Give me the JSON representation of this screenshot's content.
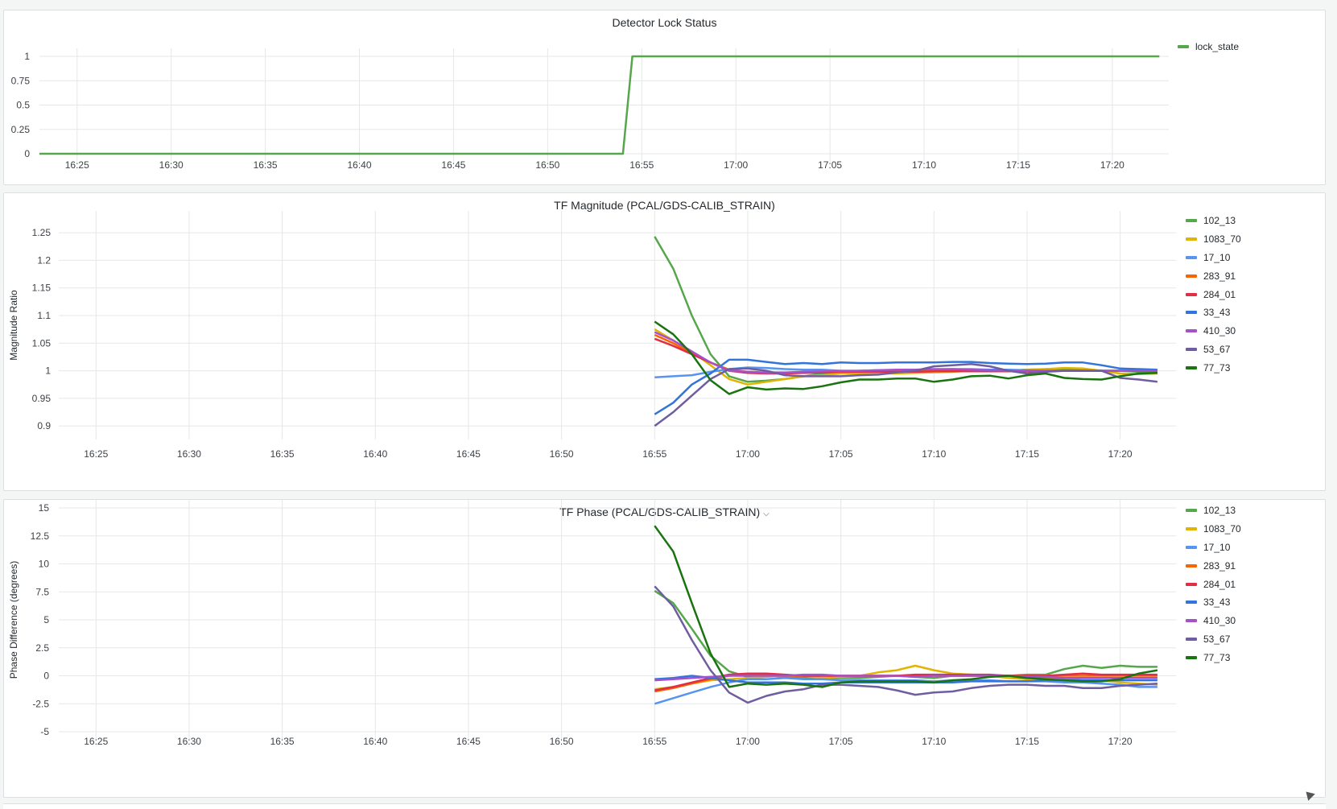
{
  "colors": {
    "102_13": "#56a64b",
    "1083_70": "#e0b400",
    "17_10": "#5794f2",
    "283_91": "#fa6400",
    "284_01": "#e02f44",
    "33_43": "#3274d9",
    "410_30": "#a352cc",
    "53_67": "#705da0",
    "77_73": "#19730e"
  },
  "panels": {
    "lock": {
      "title": "Detector Lock Status"
    },
    "mag": {
      "title": "TF Magnitude (PCAL/GDS-CALIB_STRAIN)",
      "ylabel": "Magnitude Ratio"
    },
    "phase": {
      "title": "TF Phase (PCAL/GDS-CALIB_STRAIN)",
      "ylabel": "Phase Difference (degrees)",
      "menu_icon": "chevron-down-icon"
    }
  },
  "chart_data": [
    {
      "type": "line",
      "title": "Detector Lock Status",
      "x_ticks": [
        "16:25",
        "16:30",
        "16:35",
        "16:40",
        "16:45",
        "16:50",
        "16:55",
        "17:00",
        "17:05",
        "17:10",
        "17:15",
        "17:20"
      ],
      "xlim": [
        "16:23",
        "17:23"
      ],
      "y_ticks": [
        "0",
        "0.25",
        "0.5",
        "0.75",
        "1"
      ],
      "ylim": [
        0,
        1
      ],
      "grid": true,
      "legend": "right",
      "series": [
        {
          "name": "lock_state",
          "x": [
            "16:23",
            "16:54:00",
            "16:54:30",
            "17:22:30"
          ],
          "values": [
            0,
            0,
            1,
            1
          ]
        }
      ]
    },
    {
      "type": "line",
      "title": "TF Magnitude (PCAL/GDS-CALIB_STRAIN)",
      "ylabel": "Magnitude Ratio",
      "x_ticks": [
        "16:25",
        "16:30",
        "16:35",
        "16:40",
        "16:45",
        "16:50",
        "16:55",
        "17:00",
        "17:05",
        "17:10",
        "17:15",
        "17:20"
      ],
      "xlim": [
        "16:23",
        "17:23"
      ],
      "y_ticks": [
        "0.9",
        "0.95",
        "1",
        "1.05",
        "1.1",
        "1.15",
        "1.2",
        "1.25"
      ],
      "ylim": [
        0.89,
        1.275
      ],
      "grid": true,
      "legend": "right",
      "x": [
        "16:55",
        "16:56",
        "16:57",
        "16:58",
        "16:59",
        "17:00",
        "17:01",
        "17:02",
        "17:03",
        "17:04",
        "17:05",
        "17:06",
        "17:07",
        "17:08",
        "17:09",
        "17:10",
        "17:11",
        "17:12",
        "17:13",
        "17:14",
        "17:15",
        "17:16",
        "17:17",
        "17:18",
        "17:19",
        "17:20",
        "17:21",
        "17:22"
      ],
      "series": [
        {
          "name": "102_13",
          "values": [
            1.243,
            1.185,
            1.1,
            1.03,
            0.99,
            0.98,
            0.982,
            0.985,
            0.99,
            0.995,
            0.998,
            1.0,
            1.0,
            1.0,
            1.0,
            1.0,
            1.0,
            1.0,
            1.0,
            1.0,
            1.002,
            1.003,
            1.003,
            1.002,
            1.0,
            1.0,
            0.998,
            0.997
          ]
        },
        {
          "name": "1083_70",
          "values": [
            1.075,
            1.055,
            1.035,
            1.01,
            0.985,
            0.975,
            0.98,
            0.985,
            0.99,
            0.992,
            0.995,
            0.995,
            0.995,
            0.995,
            0.996,
            0.997,
            0.998,
            1.0,
            1.0,
            1.0,
            1.002,
            1.003,
            1.005,
            1.004,
            1.0,
            0.995,
            0.994,
            0.995
          ]
        },
        {
          "name": "17_10",
          "values": [
            0.988,
            0.99,
            0.992,
            0.998,
            1.003,
            1.006,
            1.005,
            1.003,
            1.002,
            1.002,
            1.0,
            1.0,
            1.001,
            1.001,
            1.002,
            1.002,
            1.003,
            1.003,
            1.002,
            1.002,
            1.001,
            1.0,
            1.0,
            1.0,
            1.0,
            1.0,
            1.0,
            1.0
          ]
        },
        {
          "name": "283_91",
          "values": [
            1.065,
            1.05,
            1.032,
            1.015,
            1.002,
            0.998,
            0.997,
            0.997,
            0.998,
            0.998,
            0.998,
            0.999,
            0.999,
            0.999,
            0.999,
            0.999,
            1.0,
            1.0,
            1.0,
            1.0,
            1.0,
            1.0,
            1.0,
            1.0,
            1.0,
            1.0,
            1.0,
            1.0
          ]
        },
        {
          "name": "284_01",
          "values": [
            1.058,
            1.045,
            1.03,
            1.015,
            1.0,
            0.996,
            0.995,
            0.995,
            0.996,
            0.997,
            0.998,
            0.998,
            0.998,
            0.998,
            0.998,
            0.999,
            0.999,
            0.999,
            0.999,
            0.999,
            0.999,
            0.999,
            1.0,
            1.0,
            1.0,
            1.0,
            1.0,
            1.0
          ]
        },
        {
          "name": "33_43",
          "values": [
            0.921,
            0.942,
            0.975,
            0.995,
            1.02,
            1.02,
            1.016,
            1.012,
            1.014,
            1.012,
            1.015,
            1.014,
            1.014,
            1.015,
            1.015,
            1.015,
            1.016,
            1.016,
            1.014,
            1.013,
            1.012,
            1.013,
            1.015,
            1.015,
            1.01,
            1.004,
            1.003,
            1.002
          ]
        },
        {
          "name": "410_30",
          "values": [
            1.07,
            1.055,
            1.035,
            1.015,
            1.0,
            0.998,
            0.996,
            0.996,
            0.998,
            0.999,
            1.0,
            1.0,
            1.001,
            1.002,
            1.002,
            1.003,
            1.003,
            1.002,
            1.001,
            1.0,
            1.0,
            1.0,
            1.0,
            1.0,
            1.0,
            1.0,
            1.0,
            1.0
          ]
        },
        {
          "name": "53_67",
          "values": [
            0.9,
            0.925,
            0.955,
            0.985,
            1.003,
            1.004,
            1.0,
            0.992,
            0.99,
            0.99,
            0.99,
            0.992,
            0.993,
            0.997,
            1.0,
            1.008,
            1.01,
            1.012,
            1.008,
            1.0,
            0.995,
            0.998,
            1.0,
            1.0,
            1.0,
            0.987,
            0.984,
            0.98
          ]
        },
        {
          "name": "77_73",
          "values": [
            1.089,
            1.066,
            1.03,
            0.983,
            0.958,
            0.97,
            0.966,
            0.968,
            0.967,
            0.972,
            0.979,
            0.984,
            0.984,
            0.986,
            0.986,
            0.98,
            0.984,
            0.99,
            0.991,
            0.986,
            0.992,
            0.995,
            0.987,
            0.985,
            0.984,
            0.99,
            0.995,
            0.996
          ]
        }
      ]
    },
    {
      "type": "line",
      "title": "TF Phase (PCAL/GDS-CALIB_STRAIN)",
      "ylabel": "Phase Difference (degrees)",
      "x_ticks": [
        "16:25",
        "16:30",
        "16:35",
        "16:40",
        "16:45",
        "16:50",
        "16:55",
        "17:00",
        "17:05",
        "17:10",
        "17:15",
        "17:20"
      ],
      "xlim": [
        "16:23",
        "17:23"
      ],
      "y_ticks": [
        "-5",
        "-2.5",
        "0",
        "2.5",
        "5",
        "7.5",
        "10",
        "12.5",
        "15"
      ],
      "ylim": [
        -5,
        15
      ],
      "grid": true,
      "legend": "right",
      "x": [
        "16:55",
        "16:56",
        "16:57",
        "16:58",
        "16:59",
        "17:00",
        "17:01",
        "17:02",
        "17:03",
        "17:04",
        "17:05",
        "17:06",
        "17:07",
        "17:08",
        "17:09",
        "17:10",
        "17:11",
        "17:12",
        "17:13",
        "17:14",
        "17:15",
        "17:16",
        "17:17",
        "17:18",
        "17:19",
        "17:20",
        "17:21",
        "17:22"
      ],
      "series": [
        {
          "name": "102_13",
          "values": [
            7.6,
            6.5,
            4.2,
            1.8,
            0.4,
            -0.1,
            0.0,
            -0.1,
            -0.2,
            -0.2,
            -0.2,
            -0.2,
            -0.1,
            0.0,
            -0.1,
            -0.2,
            0.0,
            0.0,
            0.0,
            0.0,
            0.1,
            0.1,
            0.6,
            0.9,
            0.7,
            0.9,
            0.8,
            0.8
          ]
        },
        {
          "name": "1083_70",
          "values": [
            -1.2,
            -1.0,
            -0.7,
            -0.4,
            -0.3,
            -0.2,
            -0.1,
            0.0,
            0.0,
            -0.2,
            -0.1,
            0.0,
            0.3,
            0.5,
            0.9,
            0.5,
            0.2,
            0.1,
            0.0,
            -0.2,
            -0.3,
            -0.2,
            -0.3,
            -0.4,
            -0.4,
            -0.6,
            -0.7,
            -0.8
          ]
        },
        {
          "name": "17_10",
          "values": [
            -2.5,
            -2.0,
            -1.5,
            -1.0,
            -0.6,
            -0.3,
            -0.3,
            -0.2,
            -0.3,
            -0.3,
            -0.4,
            -0.4,
            -0.4,
            -0.4,
            -0.4,
            -0.5,
            -0.4,
            -0.4,
            -0.4,
            -0.5,
            -0.5,
            -0.5,
            -0.6,
            -0.6,
            -0.7,
            -0.8,
            -1.0,
            -1.0
          ]
        },
        {
          "name": "283_91",
          "values": [
            -1.4,
            -1.1,
            -0.7,
            -0.3,
            0.0,
            0.1,
            0.1,
            0.0,
            0.0,
            0.0,
            0.0,
            0.0,
            0.0,
            0.0,
            0.0,
            0.0,
            0.0,
            0.0,
            0.0,
            0.0,
            0.0,
            0.0,
            0.0,
            0.0,
            0.0,
            0.0,
            0.0,
            0.0
          ]
        },
        {
          "name": "284_01",
          "values": [
            -1.3,
            -1.0,
            -0.6,
            -0.2,
            0.1,
            0.2,
            0.2,
            0.1,
            0.0,
            0.0,
            0.0,
            0.0,
            0.0,
            0.0,
            0.1,
            0.1,
            0.1,
            0.1,
            0.1,
            0.0,
            0.0,
            0.0,
            0.1,
            0.2,
            0.1,
            0.1,
            0.1,
            0.1
          ]
        },
        {
          "name": "33_43",
          "values": [
            -0.3,
            -0.2,
            0.0,
            -0.2,
            -0.4,
            -0.6,
            -0.6,
            -0.6,
            -0.7,
            -0.7,
            -0.6,
            -0.6,
            -0.6,
            -0.6,
            -0.6,
            -0.6,
            -0.6,
            -0.5,
            -0.5,
            -0.5,
            -0.5,
            -0.4,
            -0.4,
            -0.4,
            -0.4,
            -0.4,
            -0.4,
            -0.4
          ]
        },
        {
          "name": "410_30",
          "values": [
            -0.4,
            -0.3,
            -0.2,
            -0.1,
            0.0,
            0.0,
            0.0,
            0.0,
            0.1,
            0.1,
            0.0,
            0.0,
            0.0,
            0.0,
            -0.1,
            0.0,
            0.0,
            0.0,
            0.0,
            0.0,
            -0.1,
            -0.1,
            -0.2,
            -0.2,
            -0.2,
            -0.2,
            -0.2,
            -0.2
          ]
        },
        {
          "name": "53_67",
          "values": [
            8.0,
            6.2,
            3.2,
            0.5,
            -1.5,
            -2.4,
            -1.8,
            -1.4,
            -1.2,
            -0.8,
            -0.8,
            -0.9,
            -1.0,
            -1.3,
            -1.7,
            -1.5,
            -1.4,
            -1.1,
            -0.9,
            -0.8,
            -0.8,
            -0.9,
            -0.9,
            -1.1,
            -1.1,
            -0.9,
            -0.8,
            -0.7
          ]
        },
        {
          "name": "77_73",
          "values": [
            13.4,
            11.1,
            6.5,
            2.0,
            -1.0,
            -0.7,
            -0.8,
            -0.7,
            -0.8,
            -1.0,
            -0.6,
            -0.5,
            -0.5,
            -0.5,
            -0.5,
            -0.6,
            -0.4,
            -0.3,
            -0.1,
            0.0,
            -0.2,
            -0.3,
            -0.4,
            -0.5,
            -0.5,
            -0.3,
            0.2,
            0.5
          ]
        }
      ]
    }
  ]
}
